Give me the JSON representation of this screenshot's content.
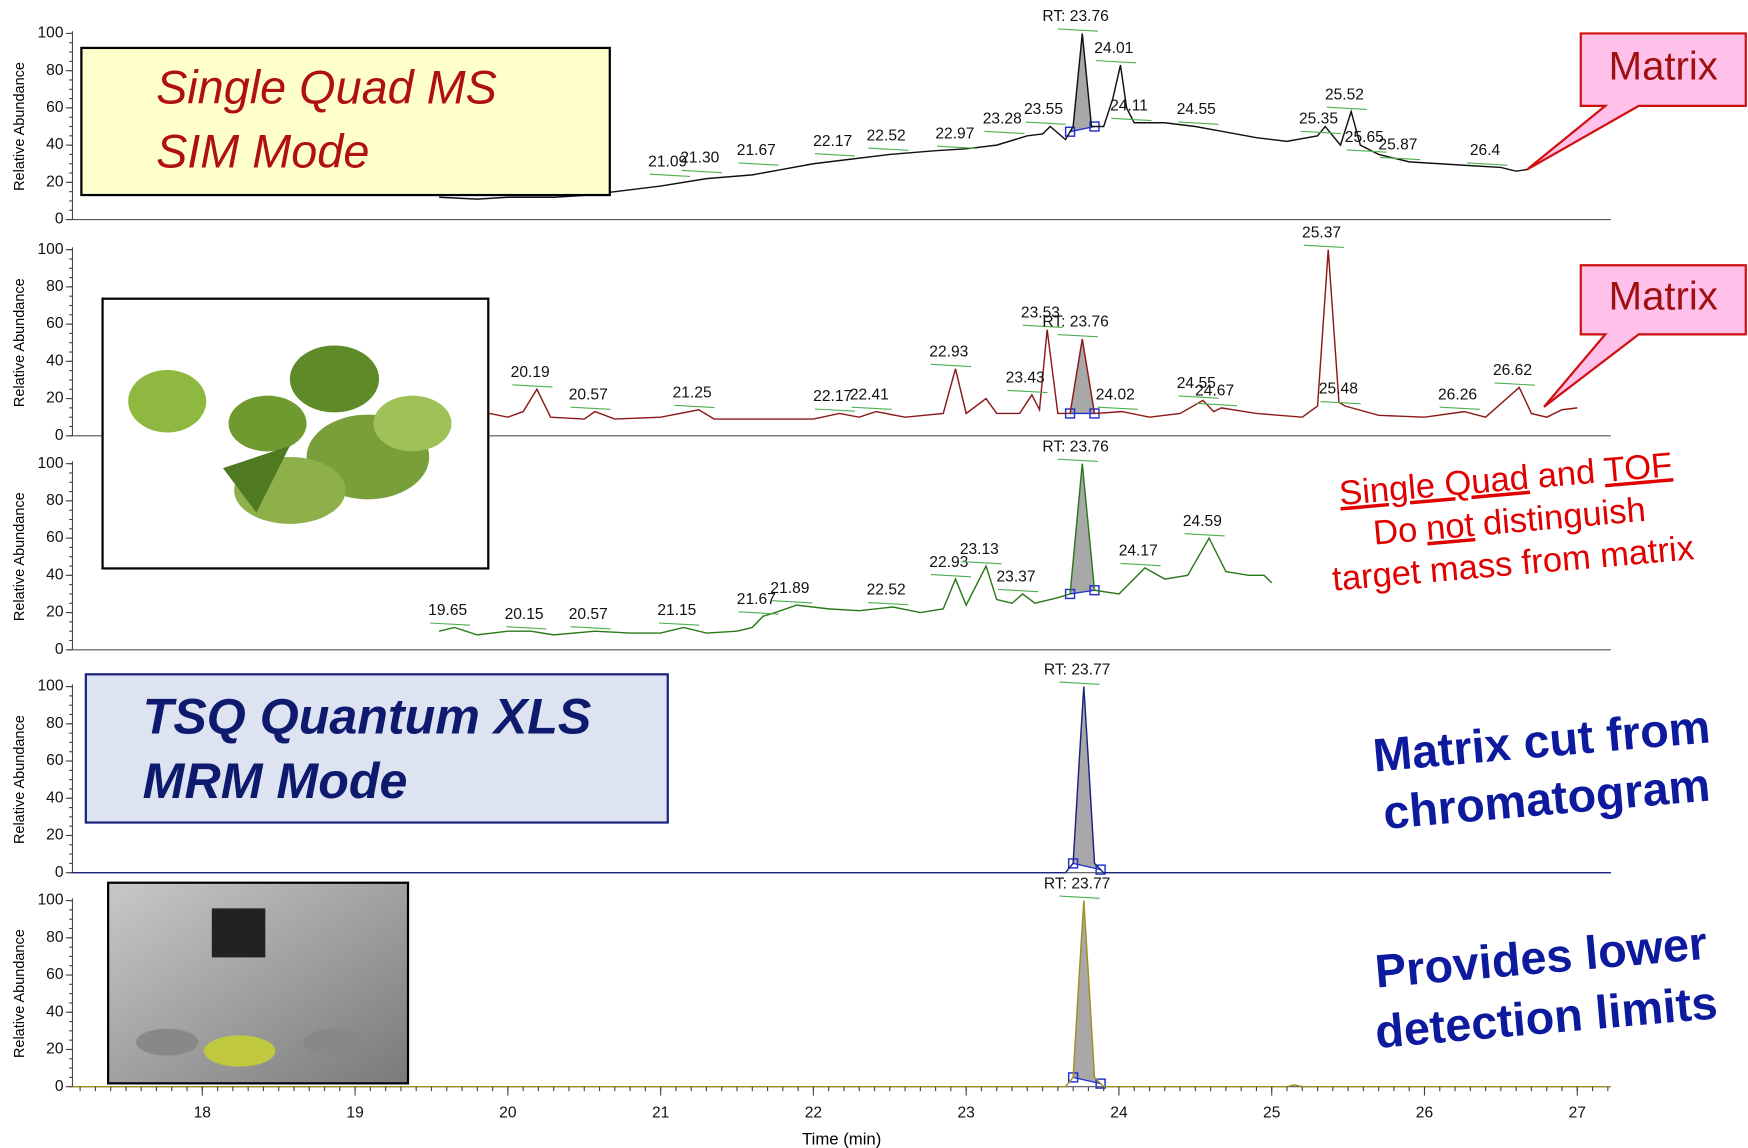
{
  "chart_data": [
    {
      "type": "line",
      "ylabel": "Relative Abundance",
      "ylim": [
        0,
        100
      ],
      "yticks": [
        0,
        20,
        40,
        60,
        80,
        100
      ],
      "xlim": [
        17.15,
        27.22
      ],
      "series": [
        {
          "color": "#111111",
          "x": [
            19.55,
            19.8,
            20.0,
            20.3,
            20.5,
            20.8,
            21.0,
            21.3,
            21.6,
            21.8,
            22.0,
            22.2,
            22.5,
            22.8,
            23.0,
            23.2,
            23.4,
            23.5,
            23.55,
            23.65,
            23.7,
            23.76,
            23.82,
            23.9,
            23.96,
            24.01,
            24.05,
            24.1,
            24.3,
            24.5,
            24.7,
            24.9,
            25.1,
            25.3,
            25.35,
            25.45,
            25.52,
            25.58,
            25.7,
            25.9,
            26.1,
            26.3,
            26.5,
            26.6,
            26.68
          ],
          "values": [
            12,
            11,
            12,
            12,
            13,
            16,
            18,
            22,
            24,
            27,
            30,
            32,
            35,
            37,
            38,
            40,
            45,
            46,
            50,
            43,
            50,
            100,
            50,
            50,
            65,
            83,
            60,
            52,
            52,
            50,
            47,
            44,
            42,
            45,
            50,
            40,
            58,
            40,
            35,
            31,
            30,
            29,
            28,
            26,
            27
          ]
        }
      ],
      "integration": [
        23.68,
        23.84
      ],
      "peak_labels": [
        {
          "x": 21.09,
          "y": 22,
          "label": "21.09"
        },
        {
          "x": 21.3,
          "y": 24,
          "label": "21.30"
        },
        {
          "x": 21.67,
          "y": 28,
          "label": "21.67"
        },
        {
          "x": 22.17,
          "y": 33,
          "label": "22.17"
        },
        {
          "x": 22.52,
          "y": 36,
          "label": "22.52"
        },
        {
          "x": 22.97,
          "y": 37,
          "label": "22.97"
        },
        {
          "x": 23.28,
          "y": 45,
          "label": "23.28"
        },
        {
          "x": 23.55,
          "y": 50,
          "label": "23.55"
        },
        {
          "x": 23.76,
          "y": 100,
          "label": "RT: 23.76"
        },
        {
          "x": 24.01,
          "y": 83,
          "label": "24.01"
        },
        {
          "x": 24.11,
          "y": 52,
          "label": "24.11"
        },
        {
          "x": 24.55,
          "y": 50,
          "label": "24.55"
        },
        {
          "x": 25.35,
          "y": 45,
          "label": "25.35"
        },
        {
          "x": 25.52,
          "y": 58,
          "label": "25.52"
        },
        {
          "x": 25.65,
          "y": 35,
          "label": "25.65"
        },
        {
          "x": 25.87,
          "y": 31,
          "label": "25.87"
        },
        {
          "x": 26.44,
          "y": 28,
          "label": "26.4"
        }
      ]
    },
    {
      "type": "line",
      "ylabel": "Relative Abundance",
      "ylim": [
        0,
        100
      ],
      "yticks": [
        0,
        20,
        40,
        60,
        80,
        100
      ],
      "xlim": [
        17.15,
        27.22
      ],
      "series": [
        {
          "color": "#8b1a1a",
          "x": [
            19.88,
            20.0,
            20.1,
            20.19,
            20.28,
            20.5,
            20.57,
            20.7,
            21.0,
            21.25,
            21.35,
            21.7,
            22.0,
            22.17,
            22.3,
            22.41,
            22.6,
            22.85,
            22.93,
            23.0,
            23.13,
            23.2,
            23.35,
            23.43,
            23.48,
            23.53,
            23.6,
            23.68,
            23.76,
            23.84,
            24.02,
            24.2,
            24.4,
            24.55,
            24.62,
            24.67,
            24.9,
            25.2,
            25.3,
            25.37,
            25.44,
            25.48,
            25.7,
            26.0,
            26.26,
            26.4,
            26.62,
            26.7,
            26.8,
            26.9,
            27.0
          ],
          "values": [
            12,
            10,
            13,
            25,
            10,
            9,
            13,
            9,
            10,
            14,
            9,
            9,
            9,
            12,
            10,
            13,
            10,
            12,
            36,
            12,
            20,
            12,
            12,
            22,
            14,
            57,
            12,
            12,
            52,
            12,
            13,
            10,
            12,
            19,
            13,
            15,
            12,
            10,
            16,
            100,
            18,
            16,
            11,
            10,
            13,
            10,
            26,
            12,
            10,
            14,
            15
          ]
        }
      ],
      "integration": [
        23.68,
        23.84
      ],
      "peak_labels": [
        {
          "x": 20.19,
          "y": 25,
          "label": "20.19"
        },
        {
          "x": 20.57,
          "y": 13,
          "label": "20.57"
        },
        {
          "x": 21.25,
          "y": 14,
          "label": "21.25"
        },
        {
          "x": 22.17,
          "y": 12,
          "label": "22.17"
        },
        {
          "x": 22.41,
          "y": 13,
          "label": "22.41"
        },
        {
          "x": 22.93,
          "y": 36,
          "label": "22.93"
        },
        {
          "x": 23.43,
          "y": 22,
          "label": "23.43"
        },
        {
          "x": 23.53,
          "y": 57,
          "label": "23.53"
        },
        {
          "x": 23.76,
          "y": 52,
          "label": "RT: 23.76"
        },
        {
          "x": 24.02,
          "y": 13,
          "label": "24.02"
        },
        {
          "x": 24.55,
          "y": 19,
          "label": "24.55"
        },
        {
          "x": 24.67,
          "y": 15,
          "label": "24.67"
        },
        {
          "x": 25.37,
          "y": 100,
          "label": "25.37"
        },
        {
          "x": 25.48,
          "y": 16,
          "label": "25.48"
        },
        {
          "x": 26.26,
          "y": 13,
          "label": "26.26"
        },
        {
          "x": 26.62,
          "y": 26,
          "label": "26.62"
        }
      ]
    },
    {
      "type": "line",
      "ylabel": "Relative Abundance",
      "ylim": [
        0,
        100
      ],
      "yticks": [
        0,
        20,
        40,
        60,
        80,
        100
      ],
      "xlim": [
        17.15,
        27.22
      ],
      "series": [
        {
          "color": "#2a7a1a",
          "x": [
            19.55,
            19.65,
            19.8,
            20.0,
            20.15,
            20.3,
            20.57,
            20.8,
            21.0,
            21.15,
            21.3,
            21.5,
            21.6,
            21.67,
            21.75,
            21.89,
            22.1,
            22.3,
            22.52,
            22.7,
            22.85,
            22.93,
            23.0,
            23.13,
            23.2,
            23.3,
            23.37,
            23.45,
            23.6,
            23.68,
            23.76,
            23.84,
            24.0,
            24.17,
            24.3,
            24.45,
            24.59,
            24.7,
            24.85,
            24.95,
            25.0
          ],
          "values": [
            10,
            12,
            8,
            10,
            10,
            8,
            10,
            9,
            9,
            12,
            9,
            10,
            12,
            18,
            20,
            24,
            22,
            21,
            23,
            20,
            22,
            38,
            24,
            45,
            27,
            25,
            30,
            25,
            28,
            30,
            100,
            32,
            30,
            44,
            38,
            40,
            60,
            42,
            40,
            40,
            36
          ]
        }
      ],
      "integration": [
        23.68,
        23.84
      ],
      "peak_labels": [
        {
          "x": 19.65,
          "y": 12,
          "label": "19.65"
        },
        {
          "x": 20.15,
          "y": 10,
          "label": "20.15"
        },
        {
          "x": 20.57,
          "y": 10,
          "label": "20.57"
        },
        {
          "x": 21.15,
          "y": 12,
          "label": "21.15"
        },
        {
          "x": 21.67,
          "y": 18,
          "label": "21.67"
        },
        {
          "x": 21.89,
          "y": 24,
          "label": "21.89"
        },
        {
          "x": 22.52,
          "y": 23,
          "label": "22.52"
        },
        {
          "x": 22.93,
          "y": 38,
          "label": "22.93"
        },
        {
          "x": 23.13,
          "y": 45,
          "label": "23.13"
        },
        {
          "x": 23.37,
          "y": 30,
          "label": "23.37"
        },
        {
          "x": 23.76,
          "y": 100,
          "label": "RT: 23.76"
        },
        {
          "x": 24.17,
          "y": 44,
          "label": "24.17"
        },
        {
          "x": 24.59,
          "y": 60,
          "label": "24.59"
        }
      ]
    },
    {
      "type": "line",
      "ylabel": "Relative Abundance",
      "ylim": [
        0,
        100
      ],
      "yticks": [
        0,
        20,
        40,
        60,
        80,
        100
      ],
      "xlim": [
        17.15,
        27.22
      ],
      "series": [
        {
          "color": "#1a237e",
          "x": [
            17.15,
            23.65,
            23.7,
            23.74,
            23.77,
            23.8,
            23.84,
            23.9,
            27.22
          ],
          "values": [
            0,
            0,
            5,
            60,
            100,
            60,
            5,
            0,
            0
          ]
        }
      ],
      "integration": [
        23.7,
        23.88
      ],
      "peak_labels": [
        {
          "x": 23.77,
          "y": 100,
          "label": "RT: 23.77"
        }
      ]
    },
    {
      "type": "line",
      "ylabel": "Relative Abundance",
      "ylim": [
        0,
        100
      ],
      "yticks": [
        0,
        20,
        40,
        60,
        80,
        100
      ],
      "xlim": [
        17.15,
        27.22
      ],
      "xlabel": "Time (min)",
      "xticks": [
        18,
        19,
        20,
        21,
        22,
        23,
        24,
        25,
        26,
        27
      ],
      "series": [
        {
          "color": "#a09020",
          "x": [
            17.15,
            23.65,
            23.7,
            23.74,
            23.77,
            23.8,
            23.84,
            23.9,
            25.1,
            25.15,
            25.2,
            27.22
          ],
          "values": [
            0,
            0,
            5,
            60,
            100,
            60,
            5,
            0,
            0,
            1,
            0,
            0
          ]
        }
      ],
      "integration": [
        23.7,
        23.88
      ],
      "peak_labels": [
        {
          "x": 23.77,
          "y": 100,
          "label": "RT: 23.77"
        }
      ]
    }
  ],
  "overlays": {
    "sim_box": [
      "Single Quad MS",
      "SIM Mode"
    ],
    "matrix_callouts": [
      "Matrix",
      "Matrix"
    ],
    "tof_note": [
      [
        {
          "text": "Single Quad",
          "underline": true
        },
        {
          "text": "and"
        },
        {
          "text": "TOF",
          "underline": true
        }
      ],
      [
        {
          "text": "Do"
        },
        {
          "text": "not",
          "underline": true
        },
        {
          "text": "distinguish"
        }
      ],
      [
        {
          "text": "target mass from matrix"
        }
      ]
    ],
    "mrm_box": [
      "TSQ Quantum XLS",
      "MRM Mode"
    ],
    "matrix_cut_note": [
      "Matrix cut from",
      "chromatogram"
    ],
    "detection_note": [
      "Provides lower",
      "detection limits"
    ]
  }
}
